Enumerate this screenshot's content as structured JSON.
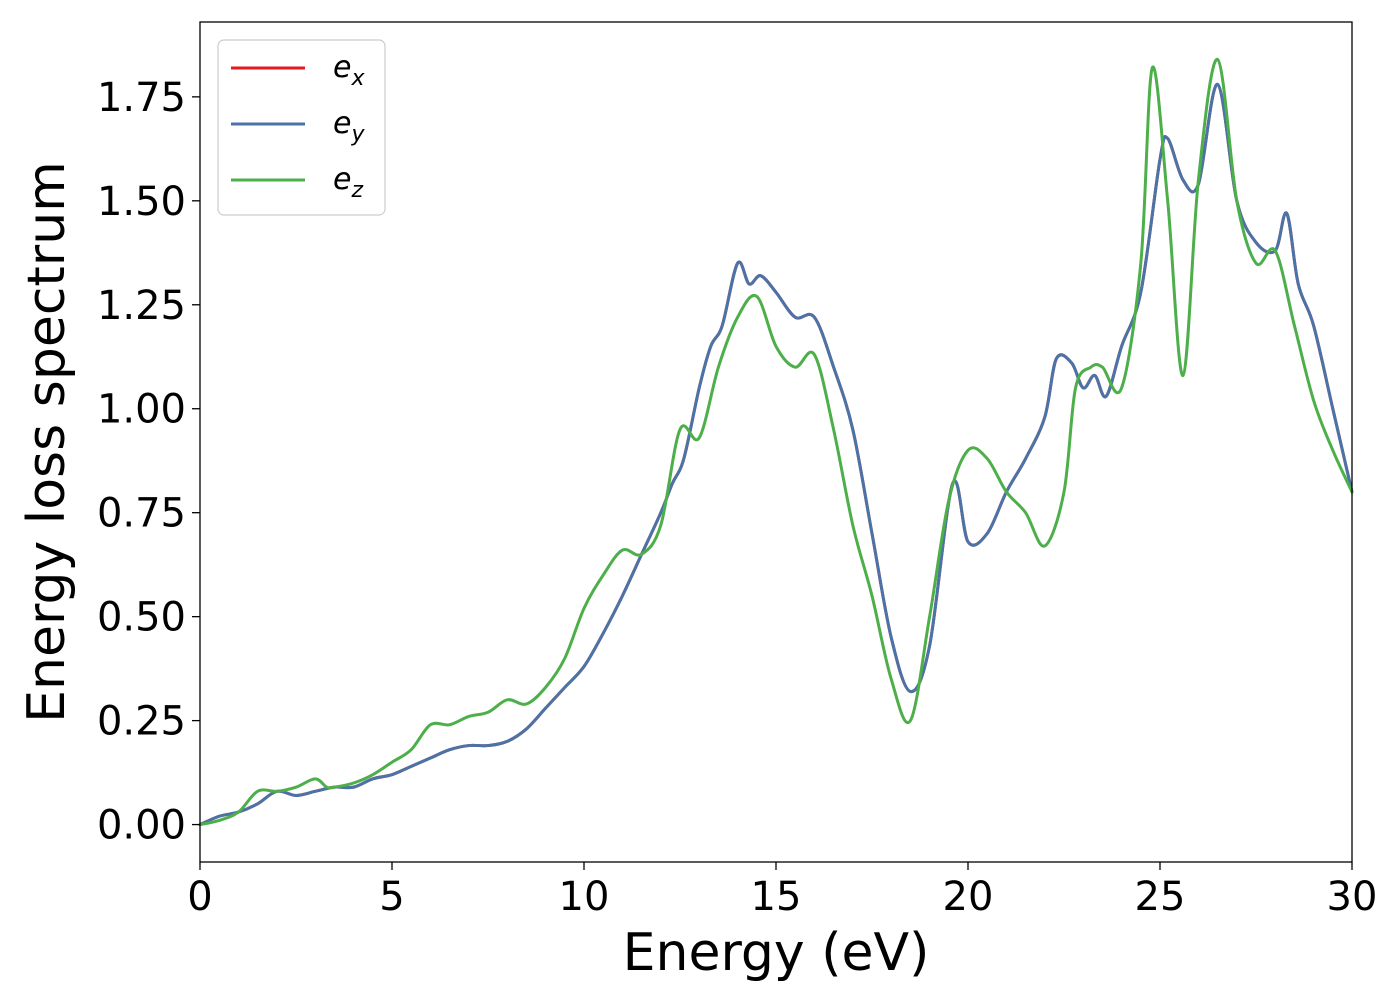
{
  "chart_data": {
    "type": "line",
    "xlabel": "Energy (eV)",
    "ylabel": "Energy loss spectrum",
    "xlim": [
      0,
      30
    ],
    "ylim": [
      -0.09,
      1.93
    ],
    "xticks": [
      0,
      5,
      10,
      15,
      20,
      25,
      30
    ],
    "xtick_labels": [
      "0",
      "5",
      "10",
      "15",
      "20",
      "25",
      "30"
    ],
    "yticks": [
      0.0,
      0.25,
      0.5,
      0.75,
      1.0,
      1.25,
      1.5,
      1.75
    ],
    "ytick_labels": [
      "0.00",
      "0.25",
      "0.50",
      "0.75",
      "1.00",
      "1.25",
      "1.50",
      "1.75"
    ],
    "grid": false,
    "legend_position": "top-left",
    "series": [
      {
        "name": "e_x",
        "base": "e",
        "sub": "x",
        "color": "#e41a1c",
        "points": [
          [
            0,
            0.0
          ],
          [
            0.5,
            0.02
          ],
          [
            1,
            0.03
          ],
          [
            1.5,
            0.05
          ],
          [
            2,
            0.08
          ],
          [
            2.5,
            0.07
          ],
          [
            3,
            0.08
          ],
          [
            3.5,
            0.09
          ],
          [
            4,
            0.09
          ],
          [
            4.5,
            0.11
          ],
          [
            5,
            0.12
          ],
          [
            5.5,
            0.14
          ],
          [
            6,
            0.16
          ],
          [
            6.5,
            0.18
          ],
          [
            7,
            0.19
          ],
          [
            7.5,
            0.19
          ],
          [
            8,
            0.2
          ],
          [
            8.5,
            0.23
          ],
          [
            9,
            0.28
          ],
          [
            9.5,
            0.33
          ],
          [
            10,
            0.38
          ],
          [
            10.5,
            0.46
          ],
          [
            11,
            0.55
          ],
          [
            11.5,
            0.65
          ],
          [
            12,
            0.75
          ],
          [
            12.3,
            0.82
          ],
          [
            12.6,
            0.88
          ],
          [
            13,
            1.05
          ],
          [
            13.3,
            1.15
          ],
          [
            13.6,
            1.2
          ],
          [
            14,
            1.35
          ],
          [
            14.3,
            1.3
          ],
          [
            14.6,
            1.32
          ],
          [
            15,
            1.28
          ],
          [
            15.5,
            1.22
          ],
          [
            16,
            1.22
          ],
          [
            16.5,
            1.1
          ],
          [
            17,
            0.95
          ],
          [
            17.5,
            0.7
          ],
          [
            18,
            0.45
          ],
          [
            18.5,
            0.32
          ],
          [
            19,
            0.43
          ],
          [
            19.6,
            0.82
          ],
          [
            20,
            0.68
          ],
          [
            20.5,
            0.7
          ],
          [
            21,
            0.8
          ],
          [
            21.5,
            0.88
          ],
          [
            22,
            0.98
          ],
          [
            22.3,
            1.12
          ],
          [
            22.7,
            1.11
          ],
          [
            23,
            1.05
          ],
          [
            23.3,
            1.08
          ],
          [
            23.6,
            1.03
          ],
          [
            24,
            1.15
          ],
          [
            24.5,
            1.28
          ],
          [
            25,
            1.6
          ],
          [
            25.2,
            1.65
          ],
          [
            25.6,
            1.55
          ],
          [
            26,
            1.54
          ],
          [
            26.5,
            1.78
          ],
          [
            27,
            1.5
          ],
          [
            27.5,
            1.4
          ],
          [
            28,
            1.38
          ],
          [
            28.3,
            1.47
          ],
          [
            28.6,
            1.3
          ],
          [
            29,
            1.2
          ],
          [
            29.5,
            1.0
          ],
          [
            30,
            0.8
          ]
        ]
      },
      {
        "name": "e_y",
        "base": "e",
        "sub": "y",
        "color": "#4a74a8",
        "points": [
          [
            0,
            0.0
          ],
          [
            0.5,
            0.02
          ],
          [
            1,
            0.03
          ],
          [
            1.5,
            0.05
          ],
          [
            2,
            0.08
          ],
          [
            2.5,
            0.07
          ],
          [
            3,
            0.08
          ],
          [
            3.5,
            0.09
          ],
          [
            4,
            0.09
          ],
          [
            4.5,
            0.11
          ],
          [
            5,
            0.12
          ],
          [
            5.5,
            0.14
          ],
          [
            6,
            0.16
          ],
          [
            6.5,
            0.18
          ],
          [
            7,
            0.19
          ],
          [
            7.5,
            0.19
          ],
          [
            8,
            0.2
          ],
          [
            8.5,
            0.23
          ],
          [
            9,
            0.28
          ],
          [
            9.5,
            0.33
          ],
          [
            10,
            0.38
          ],
          [
            10.5,
            0.46
          ],
          [
            11,
            0.55
          ],
          [
            11.5,
            0.65
          ],
          [
            12,
            0.75
          ],
          [
            12.3,
            0.82
          ],
          [
            12.6,
            0.88
          ],
          [
            13,
            1.05
          ],
          [
            13.3,
            1.15
          ],
          [
            13.6,
            1.2
          ],
          [
            14,
            1.35
          ],
          [
            14.3,
            1.3
          ],
          [
            14.6,
            1.32
          ],
          [
            15,
            1.28
          ],
          [
            15.5,
            1.22
          ],
          [
            16,
            1.22
          ],
          [
            16.5,
            1.1
          ],
          [
            17,
            0.95
          ],
          [
            17.5,
            0.7
          ],
          [
            18,
            0.45
          ],
          [
            18.5,
            0.32
          ],
          [
            19,
            0.43
          ],
          [
            19.6,
            0.82
          ],
          [
            20,
            0.68
          ],
          [
            20.5,
            0.7
          ],
          [
            21,
            0.8
          ],
          [
            21.5,
            0.88
          ],
          [
            22,
            0.98
          ],
          [
            22.3,
            1.12
          ],
          [
            22.7,
            1.11
          ],
          [
            23,
            1.05
          ],
          [
            23.3,
            1.08
          ],
          [
            23.6,
            1.03
          ],
          [
            24,
            1.15
          ],
          [
            24.5,
            1.28
          ],
          [
            25,
            1.6
          ],
          [
            25.2,
            1.65
          ],
          [
            25.6,
            1.55
          ],
          [
            26,
            1.54
          ],
          [
            26.5,
            1.78
          ],
          [
            27,
            1.5
          ],
          [
            27.5,
            1.4
          ],
          [
            28,
            1.38
          ],
          [
            28.3,
            1.47
          ],
          [
            28.6,
            1.3
          ],
          [
            29,
            1.2
          ],
          [
            29.5,
            1.0
          ],
          [
            30,
            0.8
          ]
        ]
      },
      {
        "name": "e_z",
        "base": "e",
        "sub": "z",
        "color": "#4daf4a",
        "points": [
          [
            0,
            0.0
          ],
          [
            0.5,
            0.01
          ],
          [
            1,
            0.03
          ],
          [
            1.5,
            0.08
          ],
          [
            2,
            0.08
          ],
          [
            2.5,
            0.09
          ],
          [
            3,
            0.11
          ],
          [
            3.3,
            0.09
          ],
          [
            3.5,
            0.09
          ],
          [
            4,
            0.1
          ],
          [
            4.5,
            0.12
          ],
          [
            5,
            0.15
          ],
          [
            5.5,
            0.18
          ],
          [
            6,
            0.24
          ],
          [
            6.5,
            0.24
          ],
          [
            7,
            0.26
          ],
          [
            7.5,
            0.27
          ],
          [
            8,
            0.3
          ],
          [
            8.5,
            0.29
          ],
          [
            9,
            0.33
          ],
          [
            9.5,
            0.4
          ],
          [
            10,
            0.52
          ],
          [
            10.5,
            0.6
          ],
          [
            11,
            0.66
          ],
          [
            11.5,
            0.65
          ],
          [
            12,
            0.72
          ],
          [
            12.5,
            0.95
          ],
          [
            13,
            0.93
          ],
          [
            13.5,
            1.1
          ],
          [
            14,
            1.22
          ],
          [
            14.5,
            1.27
          ],
          [
            15,
            1.15
          ],
          [
            15.5,
            1.1
          ],
          [
            16,
            1.13
          ],
          [
            16.5,
            0.95
          ],
          [
            17,
            0.72
          ],
          [
            17.5,
            0.55
          ],
          [
            18,
            0.35
          ],
          [
            18.5,
            0.25
          ],
          [
            19,
            0.5
          ],
          [
            19.5,
            0.78
          ],
          [
            20,
            0.9
          ],
          [
            20.5,
            0.88
          ],
          [
            21,
            0.8
          ],
          [
            21.5,
            0.75
          ],
          [
            22,
            0.67
          ],
          [
            22.5,
            0.8
          ],
          [
            22.8,
            1.05
          ],
          [
            23.2,
            1.1
          ],
          [
            23.5,
            1.1
          ],
          [
            24,
            1.05
          ],
          [
            24.5,
            1.35
          ],
          [
            24.8,
            1.82
          ],
          [
            25.2,
            1.5
          ],
          [
            25.6,
            1.08
          ],
          [
            26,
            1.55
          ],
          [
            26.5,
            1.84
          ],
          [
            27,
            1.5
          ],
          [
            27.5,
            1.35
          ],
          [
            28,
            1.38
          ],
          [
            28.5,
            1.2
          ],
          [
            29,
            1.02
          ],
          [
            29.5,
            0.9
          ],
          [
            30,
            0.8
          ]
        ]
      }
    ]
  }
}
